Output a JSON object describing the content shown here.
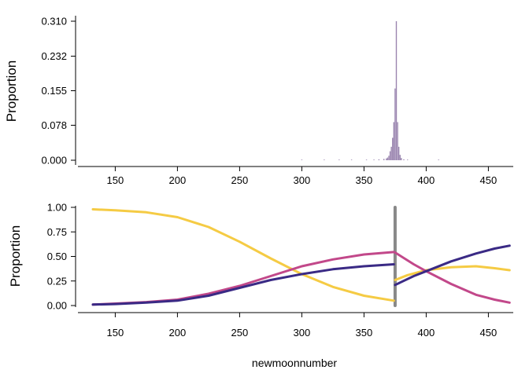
{
  "chart_data": [
    {
      "type": "bar",
      "xlabel": "",
      "ylabel": "Proportion",
      "xlim": [
        120,
        470
      ],
      "ylim": [
        0,
        0.31
      ],
      "xticks": [
        150,
        200,
        250,
        300,
        350,
        400,
        450
      ],
      "yticks": [
        "0.000",
        "0.078",
        "0.155",
        "0.232",
        "0.310"
      ],
      "bar_color": "#9b86b0",
      "bars": [
        {
          "x": 300,
          "value": 0.001
        },
        {
          "x": 318,
          "value": 0.001
        },
        {
          "x": 330,
          "value": 0.001
        },
        {
          "x": 340,
          "value": 0.001
        },
        {
          "x": 352,
          "value": 0.001
        },
        {
          "x": 358,
          "value": 0.001
        },
        {
          "x": 362,
          "value": 0.002
        },
        {
          "x": 366,
          "value": 0.003
        },
        {
          "x": 368,
          "value": 0.004
        },
        {
          "x": 369,
          "value": 0.006
        },
        {
          "x": 370,
          "value": 0.01
        },
        {
          "x": 371,
          "value": 0.02
        },
        {
          "x": 372,
          "value": 0.03
        },
        {
          "x": 373,
          "value": 0.05
        },
        {
          "x": 374,
          "value": 0.085
        },
        {
          "x": 375,
          "value": 0.16
        },
        {
          "x": 376,
          "value": 0.31
        },
        {
          "x": 377,
          "value": 0.085
        },
        {
          "x": 378,
          "value": 0.03
        },
        {
          "x": 379,
          "value": 0.012
        },
        {
          "x": 380,
          "value": 0.005
        },
        {
          "x": 382,
          "value": 0.002
        },
        {
          "x": 385,
          "value": 0.001
        },
        {
          "x": 410,
          "value": 0.001
        }
      ]
    },
    {
      "type": "line",
      "xlabel": "newmoonnumber",
      "ylabel": "Proportion",
      "xlim": [
        120,
        470
      ],
      "ylim": [
        0,
        1
      ],
      "xticks": [
        150,
        200,
        250,
        300,
        350,
        400,
        450
      ],
      "yticks": [
        "0.00",
        "0.25",
        "0.50",
        "0.75",
        "1.00"
      ],
      "changepoint": {
        "x": 375,
        "color": "#888888"
      },
      "series": [
        {
          "name": "yellow",
          "color": "#f5cb44",
          "points": [
            [
              132,
              0.98
            ],
            [
              150,
              0.97
            ],
            [
              175,
              0.95
            ],
            [
              200,
              0.9
            ],
            [
              225,
              0.8
            ],
            [
              250,
              0.65
            ],
            [
              275,
              0.48
            ],
            [
              300,
              0.32
            ],
            [
              325,
              0.19
            ],
            [
              350,
              0.1
            ],
            [
              374,
              0.05
            ],
            [
              375,
              0.26
            ],
            [
              385,
              0.31
            ],
            [
              400,
              0.36
            ],
            [
              420,
              0.39
            ],
            [
              440,
              0.4
            ],
            [
              455,
              0.38
            ],
            [
              467,
              0.36
            ]
          ]
        },
        {
          "name": "magenta",
          "color": "#c2488a",
          "points": [
            [
              132,
              0.01
            ],
            [
              150,
              0.02
            ],
            [
              175,
              0.035
            ],
            [
              200,
              0.06
            ],
            [
              225,
              0.12
            ],
            [
              250,
              0.2
            ],
            [
              275,
              0.3
            ],
            [
              300,
              0.4
            ],
            [
              325,
              0.47
            ],
            [
              350,
              0.52
            ],
            [
              374,
              0.545
            ],
            [
              375,
              0.54
            ],
            [
              390,
              0.42
            ],
            [
              400,
              0.35
            ],
            [
              420,
              0.22
            ],
            [
              440,
              0.11
            ],
            [
              455,
              0.06
            ],
            [
              467,
              0.03
            ]
          ]
        },
        {
          "name": "navy",
          "color": "#3a2a85",
          "points": [
            [
              132,
              0.01
            ],
            [
              150,
              0.015
            ],
            [
              175,
              0.03
            ],
            [
              200,
              0.05
            ],
            [
              225,
              0.1
            ],
            [
              250,
              0.18
            ],
            [
              275,
              0.26
            ],
            [
              300,
              0.32
            ],
            [
              325,
              0.37
            ],
            [
              350,
              0.4
            ],
            [
              374,
              0.42
            ],
            [
              375,
              0.21
            ],
            [
              390,
              0.3
            ],
            [
              400,
              0.35
            ],
            [
              420,
              0.45
            ],
            [
              440,
              0.53
            ],
            [
              455,
              0.58
            ],
            [
              467,
              0.61
            ]
          ]
        }
      ]
    }
  ]
}
